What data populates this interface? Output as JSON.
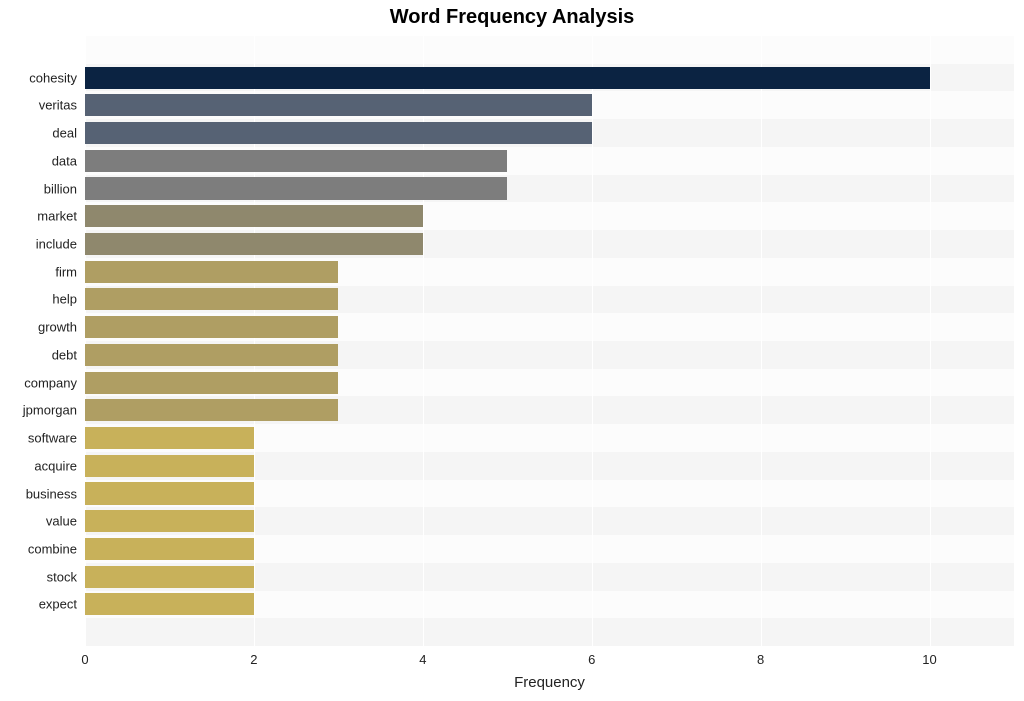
{
  "chart": {
    "type": "bar-horizontal",
    "title": "Word Frequency Analysis",
    "title_fontsize": 20,
    "title_fontweight": 700,
    "title_color": "#000000",
    "xlabel": "Frequency",
    "xlabel_fontsize": 15,
    "ylabel_fontsize": 13,
    "tick_fontsize": 13,
    "background": "#ffffff",
    "plot_bg_even": "#f5f5f5",
    "plot_bg_odd": "#fcfcfc",
    "gridline_color": "#ffffff",
    "xlim": [
      0,
      11
    ],
    "xtick_step": 2,
    "xticks": [
      0,
      2,
      4,
      6,
      8,
      10
    ],
    "bar_rel_height": 0.8,
    "row_count": 22,
    "categories": [
      "cohesity",
      "veritas",
      "deal",
      "data",
      "billion",
      "market",
      "include",
      "firm",
      "help",
      "growth",
      "debt",
      "company",
      "jpmorgan",
      "software",
      "acquire",
      "business",
      "value",
      "combine",
      "stock",
      "expect"
    ],
    "values": [
      10,
      6,
      6,
      5,
      5,
      4,
      4,
      3,
      3,
      3,
      3,
      3,
      3,
      2,
      2,
      2,
      2,
      2,
      2,
      2
    ],
    "bar_colors": [
      "#0b2342",
      "#566274",
      "#566274",
      "#7d7d7d",
      "#7d7d7d",
      "#8f886d",
      "#8f886d",
      "#af9e63",
      "#af9e63",
      "#af9e63",
      "#af9e63",
      "#af9e63",
      "#af9e63",
      "#c8b15a",
      "#c8b15a",
      "#c8b15a",
      "#c8b15a",
      "#c8b15a",
      "#c8b15a",
      "#c8b15a"
    ]
  }
}
